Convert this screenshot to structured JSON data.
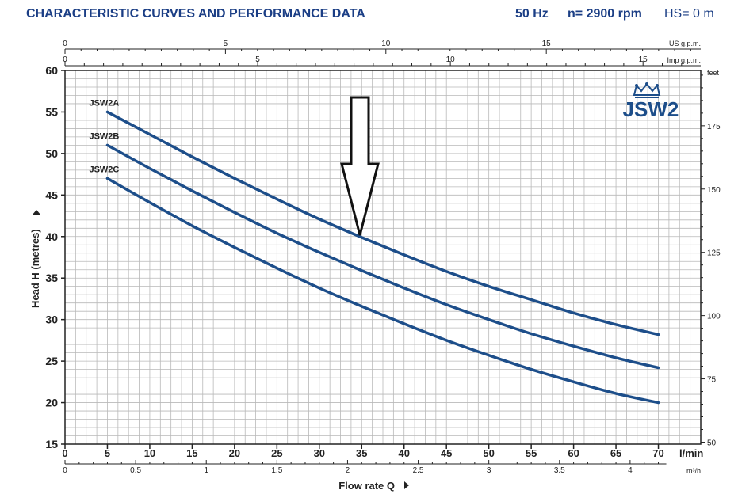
{
  "header": {
    "title": "CHARACTERISTIC CURVES AND PERFORMANCE DATA",
    "frequency": "50 Hz",
    "speed": "n= 2900 rpm",
    "suction": "HS= 0 m"
  },
  "colors": {
    "header": "#1b3e85",
    "curve": "#1d4e8a",
    "grid": "#b9b9b9",
    "axis": "#222222",
    "logo": "#1d4e8a",
    "arrow": "#111111"
  },
  "logo": {
    "text": "JSW2",
    "icon": "crown-icon"
  },
  "annotation": {
    "type": "arrow-pointing-down",
    "target_series": "JSW2A",
    "target_x": 35
  },
  "chart_data": {
    "type": "line",
    "title": "",
    "xlabel": "Flow rate Q",
    "ylabel": "Head H (metres)",
    "x_unit": "l/min",
    "xlim": [
      0,
      75
    ],
    "ylim": [
      15,
      60
    ],
    "grid": true,
    "x_ticks": [
      0,
      5,
      10,
      15,
      20,
      25,
      30,
      35,
      40,
      45,
      50,
      55,
      60,
      65,
      70
    ],
    "y_ticks": [
      15,
      20,
      25,
      30,
      35,
      40,
      45,
      50,
      55,
      60
    ],
    "secondary_axes": {
      "us_gpm": {
        "label": "US g.p.m.",
        "ticks": [
          0,
          5,
          10,
          15
        ]
      },
      "imp_gpm": {
        "label": "Imp g.p.m.",
        "ticks": [
          0,
          5,
          10,
          15
        ]
      },
      "m3h": {
        "label": "m³/h",
        "ticks": [
          "0",
          "0.5",
          "1",
          "1.5",
          "2",
          "2.5",
          "3",
          "3.5",
          "4"
        ]
      },
      "feet": {
        "label": "feet",
        "ticks": [
          50,
          75,
          100,
          125,
          150,
          175
        ]
      }
    },
    "series": [
      {
        "name": "JSW2A",
        "x": [
          5,
          10,
          15,
          20,
          25,
          30,
          35,
          40,
          45,
          50,
          55,
          60,
          65,
          70
        ],
        "y": [
          55,
          52.3,
          49.6,
          47,
          44.5,
          42.1,
          39.9,
          37.8,
          35.8,
          34,
          32.4,
          30.8,
          29.4,
          28.2
        ]
      },
      {
        "name": "JSW2B",
        "x": [
          5,
          10,
          15,
          20,
          25,
          30,
          35,
          40,
          45,
          50,
          55,
          60,
          65,
          70
        ],
        "y": [
          51,
          48.2,
          45.5,
          42.9,
          40.4,
          38.1,
          35.9,
          33.8,
          31.8,
          30,
          28.3,
          26.8,
          25.4,
          24.2
        ]
      },
      {
        "name": "JSW2C",
        "x": [
          5,
          10,
          15,
          20,
          25,
          30,
          35,
          40,
          45,
          50,
          55,
          60,
          65,
          70
        ],
        "y": [
          47,
          44.1,
          41.3,
          38.7,
          36.2,
          33.8,
          31.6,
          29.5,
          27.5,
          25.7,
          24,
          22.5,
          21.1,
          20
        ]
      }
    ]
  }
}
